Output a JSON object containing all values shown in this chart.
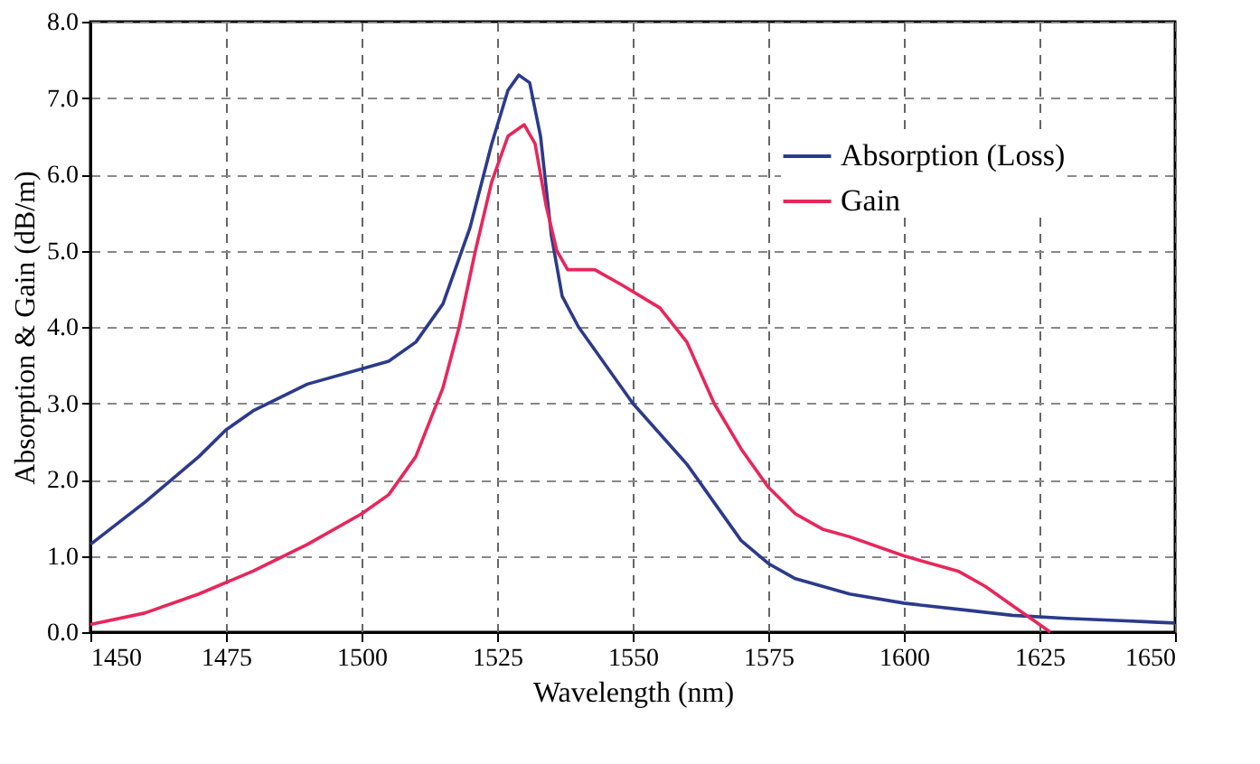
{
  "chart_data": {
    "type": "line",
    "xlabel": "Wavelength (nm)",
    "ylabel": "Absorption & Gain (dB/m)",
    "xlim": [
      1450,
      1650
    ],
    "xticks": [
      1450,
      1475,
      1500,
      1525,
      1550,
      1575,
      1600,
      1625,
      1650
    ],
    "ylim": [
      0,
      8
    ],
    "yticks": [
      {
        "value": 0,
        "label": "0.0"
      },
      {
        "value": 1,
        "label": "1.0"
      },
      {
        "value": 2,
        "label": "2.0"
      },
      {
        "value": 3,
        "label": "3.0"
      },
      {
        "value": 4,
        "label": "4.0"
      },
      {
        "value": 5,
        "label": "5.0"
      },
      {
        "value": 6,
        "label": "6.0"
      },
      {
        "value": 7,
        "label": "7.0"
      },
      {
        "value": 8,
        "label": "8.0"
      }
    ],
    "grid": true,
    "legend": "top right",
    "line_style": "solid",
    "marker": "none",
    "series": [
      {
        "name": "Absorption (Loss)",
        "color": "#2b3a8c",
        "x": [
          1450,
          1460,
          1470,
          1475,
          1480,
          1490,
          1500,
          1505,
          1510,
          1515,
          1520,
          1524,
          1527,
          1529,
          1531,
          1533,
          1535,
          1537,
          1540,
          1545,
          1550,
          1560,
          1565,
          1570,
          1575,
          1580,
          1590,
          1600,
          1610,
          1620,
          1630,
          1640,
          1650
        ],
        "values": [
          1.15,
          1.7,
          2.3,
          2.65,
          2.9,
          3.25,
          3.45,
          3.55,
          3.8,
          4.3,
          5.3,
          6.4,
          7.1,
          7.3,
          7.2,
          6.5,
          5.2,
          4.4,
          4.0,
          3.5,
          3.0,
          2.2,
          1.7,
          1.2,
          0.9,
          0.7,
          0.5,
          0.38,
          0.3,
          0.22,
          0.18,
          0.15,
          0.12
        ]
      },
      {
        "name": "Gain",
        "color": "#e8265a",
        "x": [
          1450,
          1460,
          1470,
          1480,
          1490,
          1500,
          1505,
          1510,
          1515,
          1518,
          1521,
          1524,
          1527,
          1530,
          1532,
          1534,
          1536,
          1538,
          1540,
          1543,
          1548,
          1555,
          1560,
          1565,
          1570,
          1575,
          1580,
          1585,
          1590,
          1600,
          1610,
          1615,
          1620,
          1625,
          1627
        ],
        "values": [
          0.1,
          0.25,
          0.5,
          0.8,
          1.15,
          1.55,
          1.8,
          2.3,
          3.2,
          4.0,
          5.0,
          5.9,
          6.5,
          6.65,
          6.4,
          5.6,
          5.0,
          4.75,
          4.75,
          4.75,
          4.55,
          4.25,
          3.8,
          3.0,
          2.4,
          1.9,
          1.55,
          1.35,
          1.25,
          1.0,
          0.8,
          0.6,
          0.35,
          0.1,
          0.0
        ]
      }
    ]
  }
}
